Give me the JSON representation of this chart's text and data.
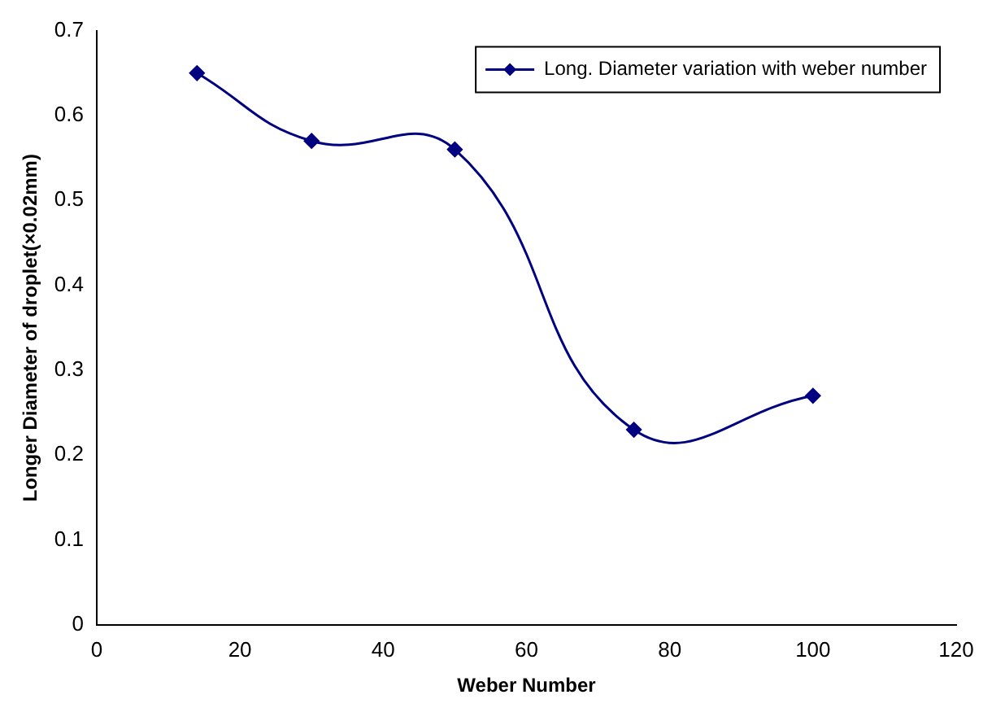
{
  "chart_data": {
    "type": "line",
    "xlabel": "Weber Number",
    "ylabel": "Longer Diameter of droplet(×0.02mm)",
    "x": [
      14,
      30,
      50,
      75,
      100
    ],
    "series": [
      {
        "name": "Long. Diameter variation with weber number",
        "color": "#000080",
        "values": [
          0.65,
          0.57,
          0.56,
          0.23,
          0.27
        ]
      }
    ],
    "xlim": [
      0,
      120
    ],
    "xticks": [
      0,
      20,
      40,
      60,
      80,
      100,
      120
    ],
    "ylim": [
      0,
      0.7
    ],
    "yticks": [
      0,
      0.1,
      0.2,
      0.3,
      0.4,
      0.5,
      0.6,
      0.7
    ],
    "grid": false,
    "legend": "top right",
    "marker": "diamond",
    "line_style": "solid"
  }
}
